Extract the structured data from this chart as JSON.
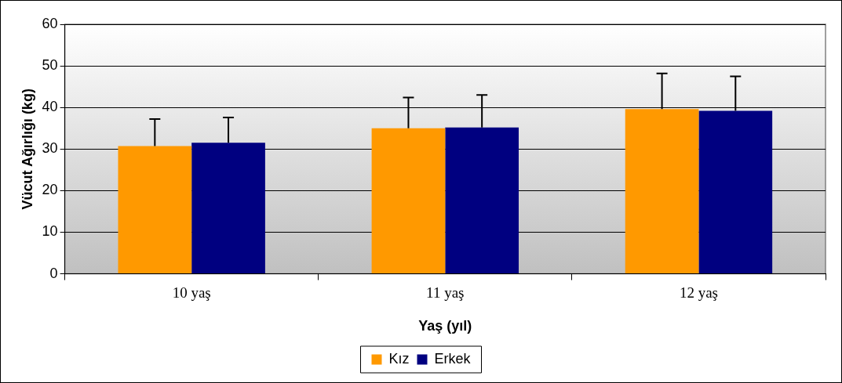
{
  "chart_data": {
    "type": "bar",
    "xlabel": "Yaş (yıl)",
    "ylabel": "Vücut Ağırlığı (kg)",
    "categories": [
      "10 yaş",
      "11 yaş",
      "12 yaş"
    ],
    "series": [
      {
        "name": "Kız",
        "color": "#ff9900",
        "values": [
          30.7,
          35.0,
          39.6
        ],
        "errors": [
          [
            30.7,
            37.2
          ],
          [
            35.0,
            42.4
          ],
          [
            39.6,
            48.2
          ]
        ]
      },
      {
        "name": "Erkek",
        "color": "#000080",
        "values": [
          31.5,
          35.2,
          39.2
        ],
        "errors": [
          [
            31.5,
            37.6
          ],
          [
            35.2,
            43.0
          ],
          [
            39.2,
            47.5
          ]
        ]
      }
    ],
    "ylim": [
      0,
      60
    ],
    "yticks": [
      0,
      10,
      20,
      30,
      40,
      50,
      60
    ],
    "grid": "y",
    "legend": "bottom"
  }
}
